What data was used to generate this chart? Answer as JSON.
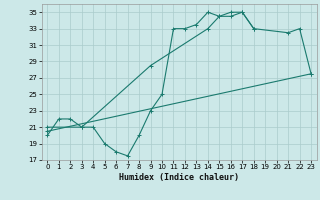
{
  "xlabel": "Humidex (Indice chaleur)",
  "bg_color": "#cce8e8",
  "grid_color": "#aacccc",
  "line_color": "#1a7a6e",
  "xlim": [
    -0.5,
    23.5
  ],
  "ylim": [
    17,
    36
  ],
  "yticks": [
    17,
    19,
    21,
    23,
    25,
    27,
    29,
    31,
    33,
    35
  ],
  "xticks": [
    0,
    1,
    2,
    3,
    4,
    5,
    6,
    7,
    8,
    9,
    10,
    11,
    12,
    13,
    14,
    15,
    16,
    17,
    18,
    19,
    20,
    21,
    22,
    23
  ],
  "line1_x": [
    0,
    1,
    2,
    3,
    4,
    5,
    6,
    7,
    8,
    9,
    10,
    11,
    12,
    13,
    14,
    15,
    16,
    17,
    18
  ],
  "line1_y": [
    20,
    22,
    22,
    21,
    21,
    19,
    18,
    17.5,
    20,
    23,
    25,
    33,
    33,
    33.5,
    35,
    34.5,
    34.5,
    35,
    33
  ],
  "line2_x": [
    0,
    3,
    9,
    14,
    15,
    16,
    17,
    18,
    21,
    22,
    23
  ],
  "line2_y": [
    21,
    21,
    28.5,
    33,
    34.5,
    35,
    35,
    33,
    32.5,
    33,
    27.5
  ],
  "line3_x": [
    0,
    23
  ],
  "line3_y": [
    20.5,
    27.5
  ]
}
